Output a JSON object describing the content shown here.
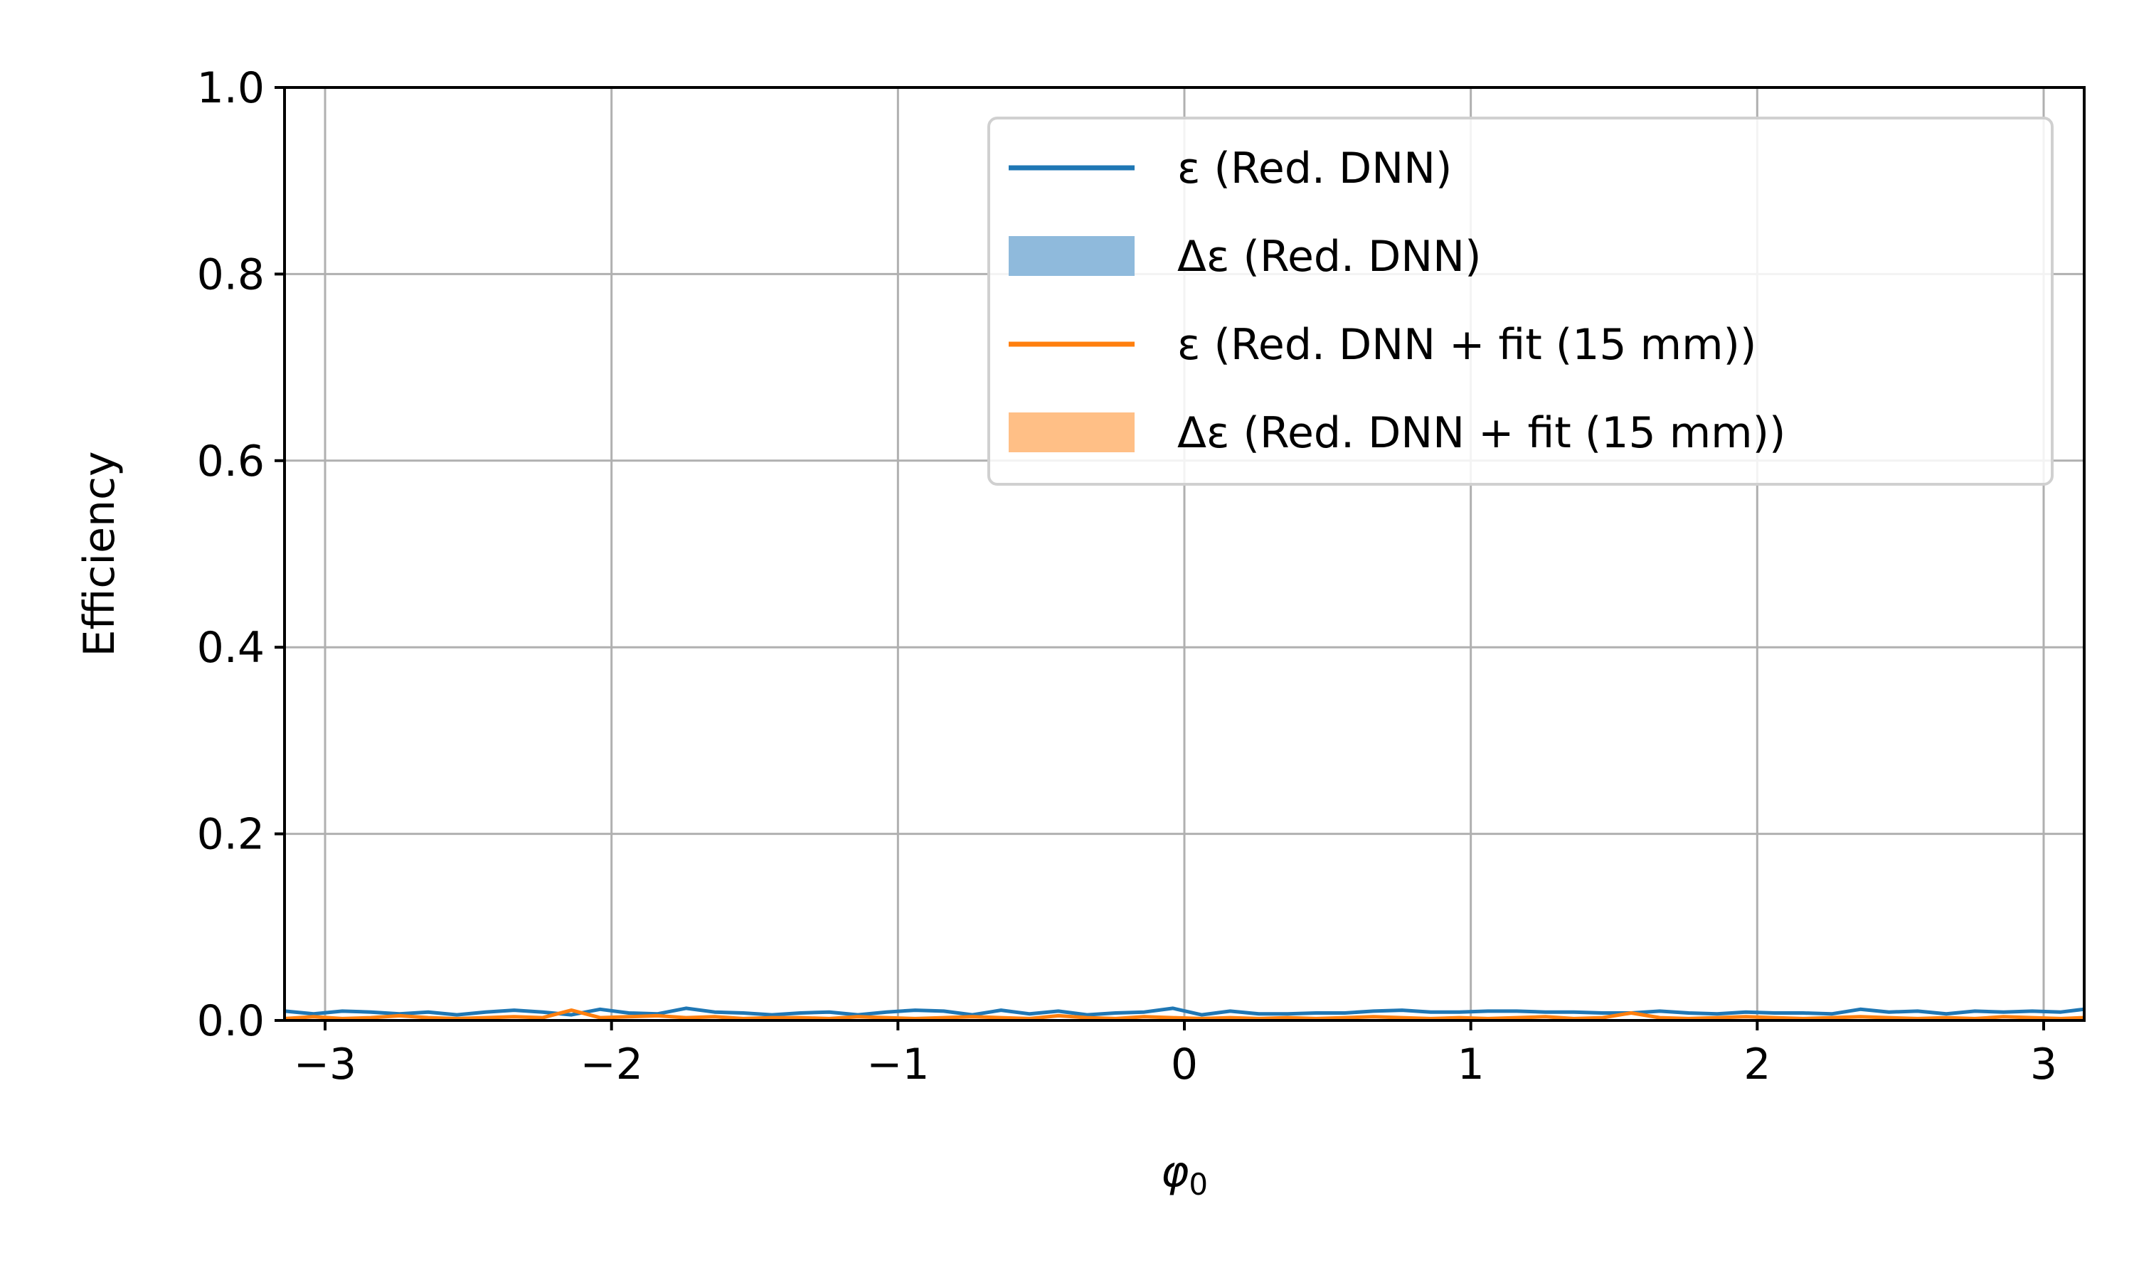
{
  "chart_data": {
    "type": "line",
    "xlabel": "φ",
    "xlabel_sub": "0",
    "ylabel": "Efficiency",
    "xlim": [
      -3.1416,
      3.1416
    ],
    "ylim": [
      0.0,
      1.0
    ],
    "grid": true,
    "legend_position": "upper right",
    "x_ticks": [
      -3,
      -2,
      -1,
      0,
      1,
      2,
      3
    ],
    "x_tick_labels": [
      "−3",
      "−2",
      "−1",
      "0",
      "1",
      "2",
      "3"
    ],
    "y_ticks": [
      0.0,
      0.2,
      0.4,
      0.6,
      0.8,
      1.0
    ],
    "y_tick_labels": [
      "0.0",
      "0.2",
      "0.4",
      "0.6",
      "0.8",
      "1.0"
    ],
    "x": [
      -3.14,
      -3.04,
      -2.94,
      -2.84,
      -2.74,
      -2.64,
      -2.54,
      -2.44,
      -2.34,
      -2.24,
      -2.14,
      -2.04,
      -1.94,
      -1.84,
      -1.74,
      -1.64,
      -1.54,
      -1.44,
      -1.34,
      -1.24,
      -1.14,
      -1.04,
      -0.94,
      -0.84,
      -0.74,
      -0.64,
      -0.54,
      -0.44,
      -0.34,
      -0.24,
      -0.14,
      -0.04,
      0.06,
      0.16,
      0.26,
      0.36,
      0.46,
      0.56,
      0.66,
      0.76,
      0.86,
      0.96,
      1.06,
      1.16,
      1.26,
      1.36,
      1.46,
      1.56,
      1.66,
      1.76,
      1.86,
      1.96,
      2.06,
      2.16,
      2.26,
      2.36,
      2.46,
      2.56,
      2.66,
      2.76,
      2.86,
      2.96,
      3.06,
      3.14
    ],
    "series": [
      {
        "name": "ε (Red. DNN)",
        "color": "#1f77b4",
        "band_color": "#1f77b4",
        "band_name": "Δε (Red. DNN)",
        "values": [
          0.01,
          0.007,
          0.01,
          0.009,
          0.007,
          0.009,
          0.006,
          0.009,
          0.011,
          0.009,
          0.006,
          0.012,
          0.008,
          0.007,
          0.013,
          0.009,
          0.008,
          0.006,
          0.008,
          0.009,
          0.006,
          0.009,
          0.011,
          0.01,
          0.006,
          0.011,
          0.007,
          0.01,
          0.006,
          0.008,
          0.009,
          0.013,
          0.006,
          0.01,
          0.007,
          0.007,
          0.008,
          0.008,
          0.01,
          0.011,
          0.009,
          0.009,
          0.01,
          0.01,
          0.009,
          0.009,
          0.008,
          0.008,
          0.01,
          0.008,
          0.007,
          0.009,
          0.008,
          0.008,
          0.007,
          0.012,
          0.009,
          0.01,
          0.007,
          0.01,
          0.009,
          0.01,
          0.009,
          0.012
        ],
        "band_halfwidth": 0.001
      },
      {
        "name": "ε (Red. DNN + fit (15 mm))",
        "color": "#ff7f0e",
        "band_color": "#ffbb78",
        "band_name": "Δε (Red. DNN + fit (15 mm))",
        "values": [
          0.002,
          0.004,
          0.002,
          0.003,
          0.005,
          0.003,
          0.002,
          0.003,
          0.004,
          0.003,
          0.011,
          0.003,
          0.004,
          0.005,
          0.003,
          0.004,
          0.002,
          0.003,
          0.003,
          0.002,
          0.004,
          0.003,
          0.002,
          0.003,
          0.004,
          0.003,
          0.002,
          0.005,
          0.003,
          0.002,
          0.004,
          0.003,
          0.002,
          0.003,
          0.002,
          0.003,
          0.002,
          0.003,
          0.004,
          0.003,
          0.002,
          0.003,
          0.002,
          0.003,
          0.004,
          0.002,
          0.003,
          0.008,
          0.003,
          0.002,
          0.003,
          0.004,
          0.003,
          0.002,
          0.003,
          0.004,
          0.003,
          0.002,
          0.003,
          0.002,
          0.004,
          0.003,
          0.002,
          0.003
        ],
        "band_halfwidth": 0.001
      }
    ],
    "legend": [
      {
        "label": "ε (Red. DNN)",
        "kind": "line",
        "color": "#1f77b4"
      },
      {
        "label": "Δε (Red. DNN)",
        "kind": "patch",
        "color": "#8fbadc"
      },
      {
        "label": "ε (Red. DNN + fit (15 mm))",
        "kind": "line",
        "color": "#ff7f0e"
      },
      {
        "label": "Δε (Red. DNN + fit (15 mm))",
        "kind": "patch",
        "color": "#ffbf86"
      }
    ]
  }
}
